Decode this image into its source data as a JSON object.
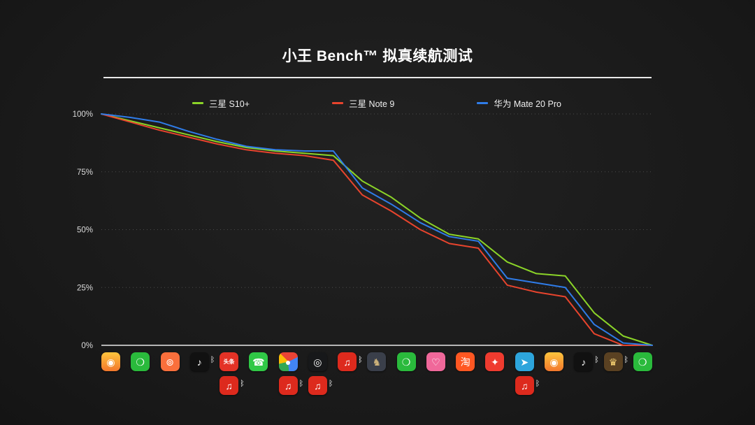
{
  "title": "小王 Bench™ 拟真续航测试",
  "chart_data": {
    "type": "line",
    "title": "小王 Bench™ 拟真续航测试",
    "x": [
      0,
      1,
      2,
      3,
      4,
      5,
      6,
      7,
      8,
      9,
      10,
      11,
      12,
      13,
      14,
      15,
      16,
      17,
      18,
      19
    ],
    "x_axis_note": "x axis labeled with app icons showing usage sequence, some with bluetooth",
    "series": [
      {
        "name": "三星 S10+",
        "color": "#8bd428",
        "values": [
          100,
          97,
          94,
          91,
          88,
          85.5,
          84,
          83,
          82,
          71,
          64,
          55,
          48,
          46,
          36,
          31,
          30,
          14,
          4,
          0
        ]
      },
      {
        "name": "三星 Note 9",
        "color": "#e8442d",
        "values": [
          100,
          96.5,
          93,
          90,
          87,
          84.5,
          83,
          82,
          80,
          65,
          58,
          50,
          44,
          42,
          26,
          23,
          21,
          5,
          0,
          0
        ]
      },
      {
        "name": "华为 Mate 20 Pro",
        "color": "#2f7ce8",
        "values": [
          100,
          98.5,
          96.5,
          92.5,
          89,
          86,
          84.5,
          84,
          84,
          68,
          61,
          53,
          47,
          45,
          29,
          27,
          25,
          9,
          1,
          0
        ]
      }
    ],
    "ylim": [
      0,
      100
    ],
    "yticks": [
      {
        "label": "100%",
        "value": 100
      },
      {
        "label": "75%",
        "value": 75
      },
      {
        "label": "50%",
        "value": 50
      },
      {
        "label": "25%",
        "value": 25
      },
      {
        "label": "0%",
        "value": 0
      }
    ],
    "grid": "horizontal-dotted",
    "legend_position": "top-center"
  },
  "bluetooth_glyph": "ᛒ",
  "icons": [
    {
      "name": "weibo",
      "glyph": "◉",
      "bg": "linear-gradient(180deg,#ffc53d,#f2772c)",
      "fg": "#ffffff",
      "bt": false
    },
    {
      "name": "wechat",
      "glyph": "❍",
      "bg": "#2aba3c",
      "fg": "#ffffff",
      "bt": false
    },
    {
      "name": "mobike",
      "glyph": "⊚",
      "bg": "#fa6f3c",
      "fg": "#ffffff",
      "bt": false
    },
    {
      "name": "douyin",
      "glyph": "♪",
      "bg": "#111111",
      "fg": "#ffffff",
      "bt": true
    },
    {
      "name": "toutiao",
      "glyph": "头条",
      "bg": "#e43226",
      "fg": "#ffffff",
      "bt": false,
      "small": true,
      "sub": {
        "name": "netease-music",
        "glyph": "♫",
        "bg": "#dd2a1d",
        "fg": "#ffffff",
        "bt": true
      }
    },
    {
      "name": "phone",
      "glyph": "☎",
      "bg": "#30c846",
      "fg": "#ffffff",
      "bt": false
    },
    {
      "name": "chrome",
      "glyph": "●",
      "bg": "conic-gradient(from -45deg,#ea4335 0% 30%,#4285f4 30% 62%,#34a853 62% 84%,#fbbc05 84% 100%)",
      "fg": "#ffffff",
      "bt": false,
      "sub": {
        "name": "netease-music",
        "glyph": "♫",
        "bg": "#dd2a1d",
        "fg": "#ffffff",
        "bt": true
      }
    },
    {
      "name": "camera",
      "glyph": "◎",
      "bg": "#17181a",
      "fg": "#ffffff",
      "bt": false,
      "sub": {
        "name": "netease-music",
        "glyph": "♫",
        "bg": "#dd2a1d",
        "fg": "#ffffff",
        "bt": true
      }
    },
    {
      "name": "netease-music",
      "glyph": "♫",
      "bg": "#dd2a1d",
      "fg": "#ffffff",
      "bt": true
    },
    {
      "name": "game-app",
      "glyph": "♞",
      "bg": "#3a3f4a",
      "fg": "#cdb27a",
      "bt": false
    },
    {
      "name": "wechat",
      "glyph": "❍",
      "bg": "#2aba3c",
      "fg": "#ffffff",
      "bt": false
    },
    {
      "name": "pink-app",
      "glyph": "♡",
      "bg": "#f0689a",
      "fg": "#ffffff",
      "bt": false
    },
    {
      "name": "taobao",
      "glyph": "淘",
      "bg": "#ff5722",
      "fg": "#ffffff",
      "bt": false
    },
    {
      "name": "red-app",
      "glyph": "✦",
      "bg": "#ef3b2f",
      "fg": "#ffffff",
      "bt": false
    },
    {
      "name": "telegram",
      "glyph": "➤",
      "bg": "#2da5dc",
      "fg": "#ffffff",
      "bt": false,
      "sub": {
        "name": "netease-music",
        "glyph": "♫",
        "bg": "#dd2a1d",
        "fg": "#ffffff",
        "bt": true
      }
    },
    {
      "name": "weibo",
      "glyph": "◉",
      "bg": "linear-gradient(180deg,#ffc53d,#f2772c)",
      "fg": "#ffffff",
      "bt": false
    },
    {
      "name": "douyin",
      "glyph": "♪",
      "bg": "#111111",
      "fg": "#ffffff",
      "bt": true
    },
    {
      "name": "game-gold",
      "glyph": "♛",
      "bg": "#5a4122",
      "fg": "#ffd977",
      "bt": true
    },
    {
      "name": "wechat",
      "glyph": "❍",
      "bg": "#2aba3c",
      "fg": "#ffffff",
      "bt": false
    }
  ]
}
